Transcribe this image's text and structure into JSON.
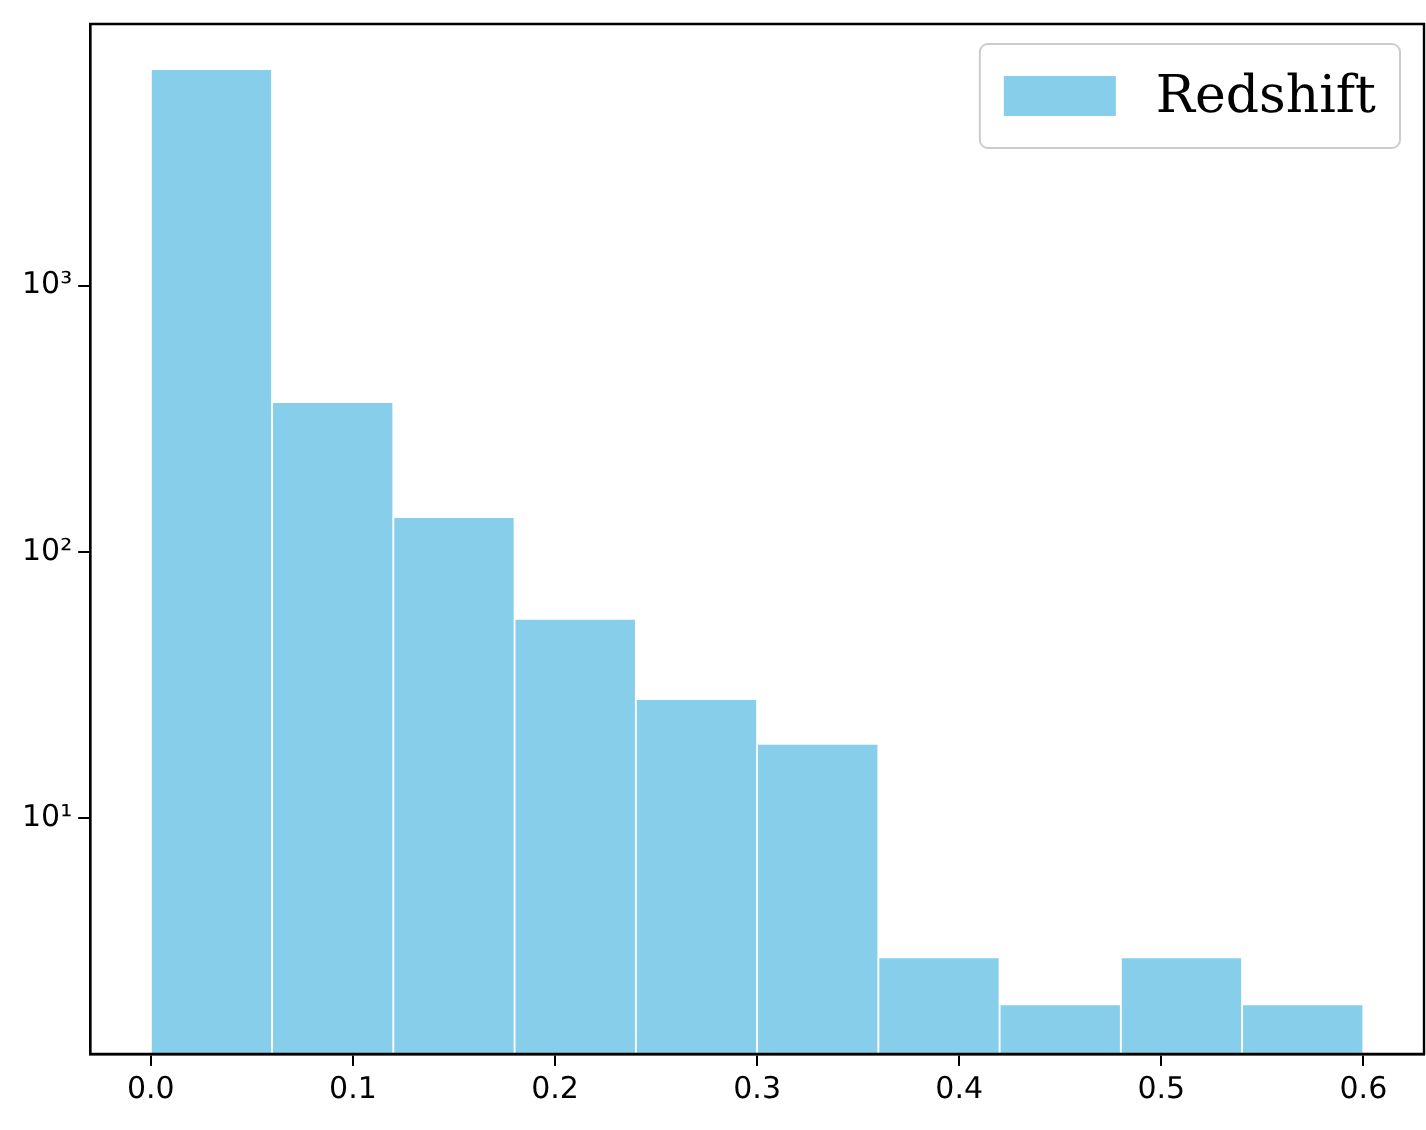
{
  "chart_data": {
    "type": "histogram",
    "bins": [
      0.0,
      0.06,
      0.12,
      0.18,
      0.24,
      0.3,
      0.36,
      0.42,
      0.48,
      0.54,
      0.6
    ],
    "series": [
      {
        "name": "Redshift",
        "color": "#87ceeb",
        "values": [
          6500,
          365,
          135,
          56,
          28,
          19,
          3,
          2,
          3,
          2
        ]
      }
    ],
    "xlim": [
      -0.03,
      0.63
    ],
    "xticks": [
      {
        "value": 0,
        "label": "0.0"
      },
      0.1,
      0.2,
      0.3,
      0.4,
      0.5,
      0.6
    ],
    "log": "y",
    "ylim": [
      1.3,
      9600
    ],
    "yticks": [
      {
        "value": 10,
        "label": "10¹"
      },
      {
        "value": 100,
        "label": "10²"
      },
      {
        "value": 1000,
        "label": "10³"
      }
    ],
    "grid": false,
    "legend": "top right"
  }
}
